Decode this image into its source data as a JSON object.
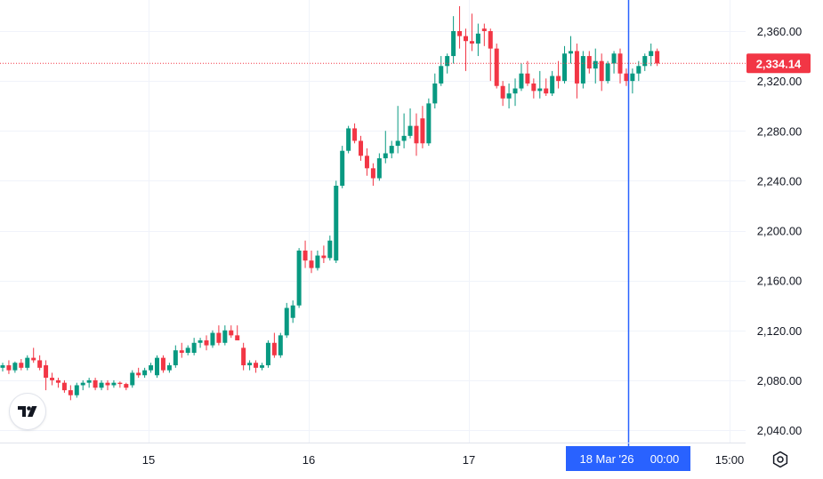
{
  "colors": {
    "up": "#089981",
    "down": "#f23645",
    "crosshair": "#2962ff",
    "grid": "#f0f3fa",
    "axis_text": "#131722",
    "last_price_line": "#f23645"
  },
  "icons": {
    "logo": "tradingview-logo-icon",
    "settings": "gear-icon"
  },
  "chart_data": {
    "type": "candlestick",
    "x_axis": {
      "ticks": [
        "15",
        "16",
        "17",
        "18 Mar '26",
        "15:00"
      ],
      "crosshair_label": {
        "date": "18 Mar '26",
        "time": "00:00"
      }
    },
    "y_axis": {
      "ticks": [
        "2,360.00",
        "2,320.00",
        "2,280.00",
        "2,240.00",
        "2,200.00",
        "2,160.00",
        "2,120.00",
        "2,080.00",
        "2,040.00"
      ],
      "tick_values": [
        2360,
        2320,
        2280,
        2240,
        2200,
        2160,
        2120,
        2080,
        2040
      ],
      "range": [
        2030,
        2380
      ]
    },
    "last_price": {
      "label": "2,334.14",
      "value": 2334.14
    },
    "grid": true,
    "candles": [
      [
        2090,
        2094,
        2087,
        2092
      ],
      [
        2092,
        2096,
        2085,
        2088
      ],
      [
        2088,
        2095,
        2086,
        2094
      ],
      [
        2094,
        2097,
        2088,
        2090
      ],
      [
        2090,
        2100,
        2088,
        2098
      ],
      [
        2098,
        2106,
        2094,
        2096
      ],
      [
        2096,
        2100,
        2088,
        2090
      ],
      [
        2092,
        2096,
        2072,
        2082
      ],
      [
        2082,
        2086,
        2076,
        2080
      ],
      [
        2080,
        2082,
        2074,
        2078
      ],
      [
        2078,
        2080,
        2070,
        2072
      ],
      [
        2072,
        2076,
        2064,
        2068
      ],
      [
        2068,
        2078,
        2066,
        2076
      ],
      [
        2076,
        2080,
        2072,
        2078
      ],
      [
        2078,
        2082,
        2074,
        2080
      ],
      [
        2080,
        2082,
        2072,
        2074
      ],
      [
        2074,
        2080,
        2072,
        2078
      ],
      [
        2078,
        2080,
        2072,
        2076
      ],
      [
        2076,
        2080,
        2074,
        2078
      ],
      [
        2078,
        2079,
        2074,
        2077
      ],
      [
        2077,
        2078,
        2072,
        2074
      ],
      [
        2076,
        2088,
        2074,
        2086
      ],
      [
        2086,
        2090,
        2082,
        2084
      ],
      [
        2084,
        2090,
        2082,
        2088
      ],
      [
        2088,
        2094,
        2086,
        2092
      ],
      [
        2084,
        2100,
        2082,
        2098
      ],
      [
        2098,
        2100,
        2086,
        2088
      ],
      [
        2088,
        2094,
        2086,
        2092
      ],
      [
        2092,
        2108,
        2090,
        2104
      ],
      [
        2104,
        2110,
        2098,
        2102
      ],
      [
        2102,
        2108,
        2100,
        2106
      ],
      [
        2102,
        2114,
        2100,
        2110
      ],
      [
        2110,
        2114,
        2106,
        2112
      ],
      [
        2112,
        2116,
        2104,
        2108
      ],
      [
        2108,
        2120,
        2106,
        2118
      ],
      [
        2118,
        2124,
        2108,
        2110
      ],
      [
        2110,
        2124,
        2108,
        2120
      ],
      [
        2120,
        2124,
        2114,
        2116
      ],
      [
        2116,
        2124,
        2112,
        2112
      ],
      [
        2106,
        2110,
        2088,
        2092
      ],
      [
        2092,
        2096,
        2088,
        2094
      ],
      [
        2094,
        2096,
        2086,
        2090
      ],
      [
        2090,
        2094,
        2088,
        2092
      ],
      [
        2092,
        2112,
        2090,
        2110
      ],
      [
        2110,
        2118,
        2098,
        2100
      ],
      [
        2100,
        2118,
        2098,
        2116
      ],
      [
        2116,
        2142,
        2114,
        2138
      ],
      [
        2130,
        2144,
        2126,
        2140
      ],
      [
        2140,
        2186,
        2138,
        2184
      ],
      [
        2184,
        2192,
        2170,
        2176
      ],
      [
        2176,
        2184,
        2166,
        2170
      ],
      [
        2170,
        2184,
        2168,
        2180
      ],
      [
        2180,
        2188,
        2174,
        2178
      ],
      [
        2178,
        2196,
        2176,
        2192
      ],
      [
        2176,
        2240,
        2174,
        2236
      ],
      [
        2236,
        2268,
        2234,
        2264
      ],
      [
        2264,
        2284,
        2262,
        2282
      ],
      [
        2282,
        2286,
        2270,
        2272
      ],
      [
        2272,
        2276,
        2256,
        2260
      ],
      [
        2260,
        2266,
        2244,
        2250
      ],
      [
        2250,
        2254,
        2236,
        2242
      ],
      [
        2242,
        2262,
        2240,
        2258
      ],
      [
        2258,
        2280,
        2254,
        2262
      ],
      [
        2262,
        2272,
        2258,
        2268
      ],
      [
        2268,
        2300,
        2262,
        2272
      ],
      [
        2272,
        2294,
        2266,
        2276
      ],
      [
        2276,
        2298,
        2274,
        2284
      ],
      [
        2284,
        2294,
        2260,
        2270
      ],
      [
        2290,
        2300,
        2266,
        2270
      ],
      [
        2270,
        2306,
        2268,
        2302
      ],
      [
        2302,
        2326,
        2298,
        2318
      ],
      [
        2318,
        2340,
        2316,
        2332
      ],
      [
        2332,
        2342,
        2326,
        2340
      ],
      [
        2340,
        2372,
        2334,
        2360
      ],
      [
        2360,
        2380,
        2346,
        2356
      ],
      [
        2356,
        2362,
        2328,
        2352
      ],
      [
        2352,
        2374,
        2344,
        2350
      ],
      [
        2350,
        2366,
        2340,
        2358
      ],
      [
        2362,
        2366,
        2348,
        2360
      ],
      [
        2360,
        2362,
        2320,
        2346
      ],
      [
        2346,
        2350,
        2314,
        2316
      ],
      [
        2316,
        2320,
        2300,
        2306
      ],
      [
        2306,
        2318,
        2298,
        2310
      ],
      [
        2310,
        2322,
        2300,
        2314
      ],
      [
        2314,
        2334,
        2312,
        2326
      ],
      [
        2326,
        2336,
        2316,
        2318
      ],
      [
        2318,
        2322,
        2306,
        2312
      ],
      [
        2312,
        2328,
        2306,
        2314
      ],
      [
        2314,
        2322,
        2308,
        2310
      ],
      [
        2310,
        2328,
        2308,
        2324
      ],
      [
        2324,
        2336,
        2314,
        2320
      ],
      [
        2320,
        2348,
        2318,
        2342
      ],
      [
        2342,
        2356,
        2334,
        2344
      ],
      [
        2344,
        2350,
        2306,
        2318
      ],
      [
        2318,
        2344,
        2314,
        2340
      ],
      [
        2340,
        2344,
        2326,
        2330
      ],
      [
        2330,
        2346,
        2318,
        2336
      ],
      [
        2336,
        2342,
        2312,
        2320
      ],
      [
        2320,
        2336,
        2318,
        2334
      ],
      [
        2334,
        2344,
        2326,
        2342
      ],
      [
        2342,
        2346,
        2318,
        2326
      ],
      [
        2326,
        2330,
        2316,
        2320
      ],
      [
        2320,
        2330,
        2310,
        2326
      ],
      [
        2326,
        2336,
        2320,
        2332
      ],
      [
        2332,
        2342,
        2328,
        2340
      ],
      [
        2340,
        2350,
        2332,
        2344
      ],
      [
        2344,
        2346,
        2332,
        2334
      ]
    ]
  }
}
